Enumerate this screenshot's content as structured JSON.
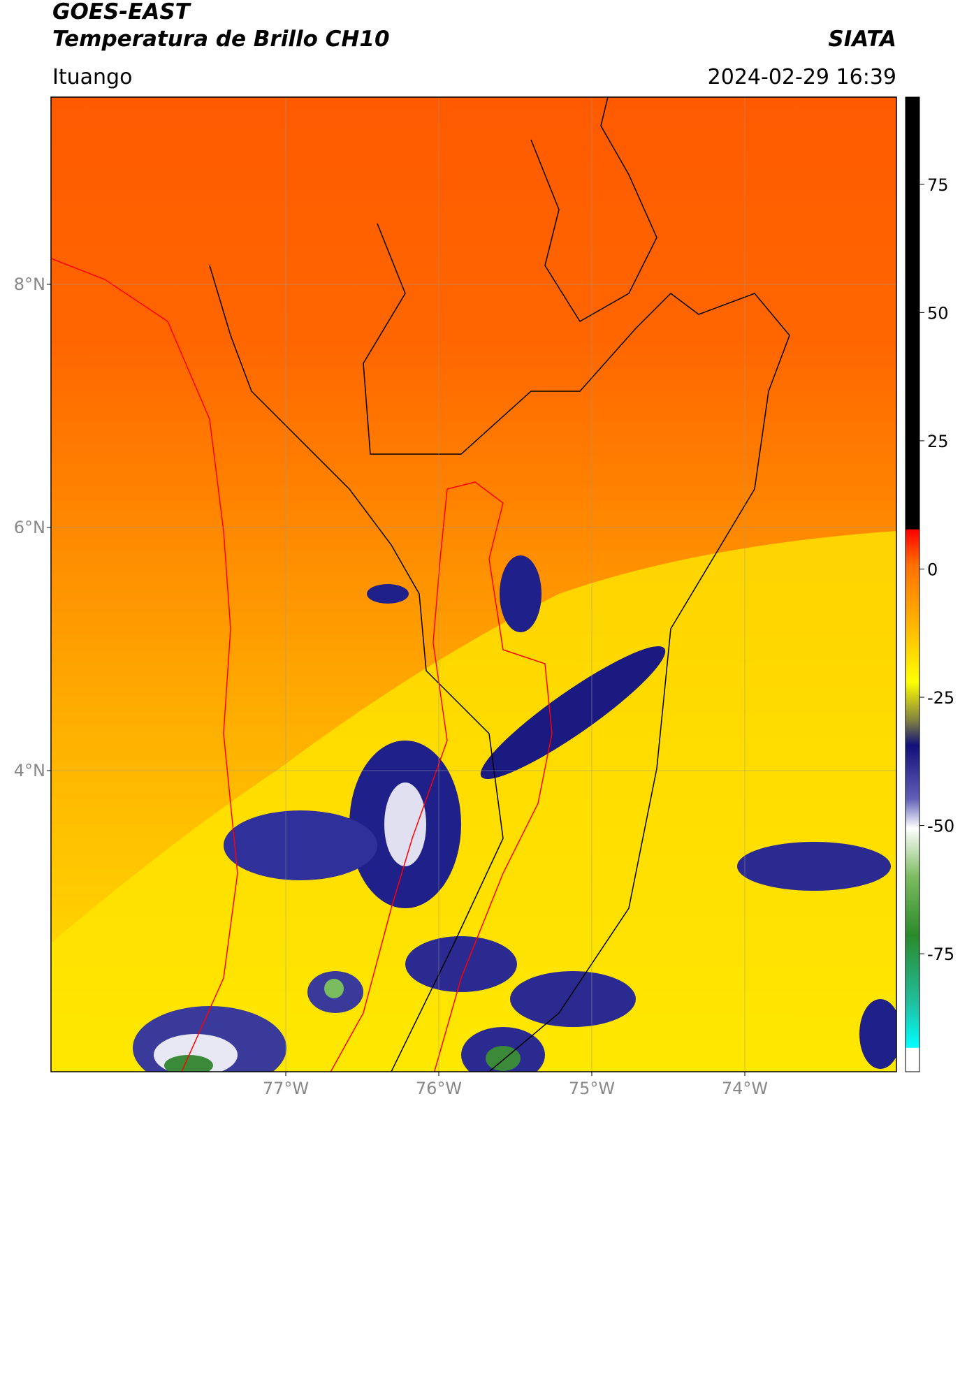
{
  "header": {
    "title": "GOES-EAST",
    "subtitle": "Temperatura de Brillo CH10",
    "org": "SIATA",
    "location": "Ituango",
    "datetime": "2024-02-29 16:39"
  },
  "map": {
    "lat_labels": [
      {
        "value": 8,
        "label": "8°N"
      },
      {
        "value": 6,
        "label": "6°N"
      },
      {
        "value": 4,
        "label": "4°N"
      }
    ],
    "lon_labels": [
      {
        "value": -77,
        "label": "77°W"
      },
      {
        "value": -76,
        "label": "76°W"
      },
      {
        "value": -75,
        "label": "75°W"
      },
      {
        "value": -74,
        "label": "74°W"
      }
    ]
  },
  "colorbar": {
    "lim": [
      -98,
      92
    ],
    "ticks": [
      75,
      50,
      25,
      0,
      -25,
      -50,
      -75
    ]
  }
}
